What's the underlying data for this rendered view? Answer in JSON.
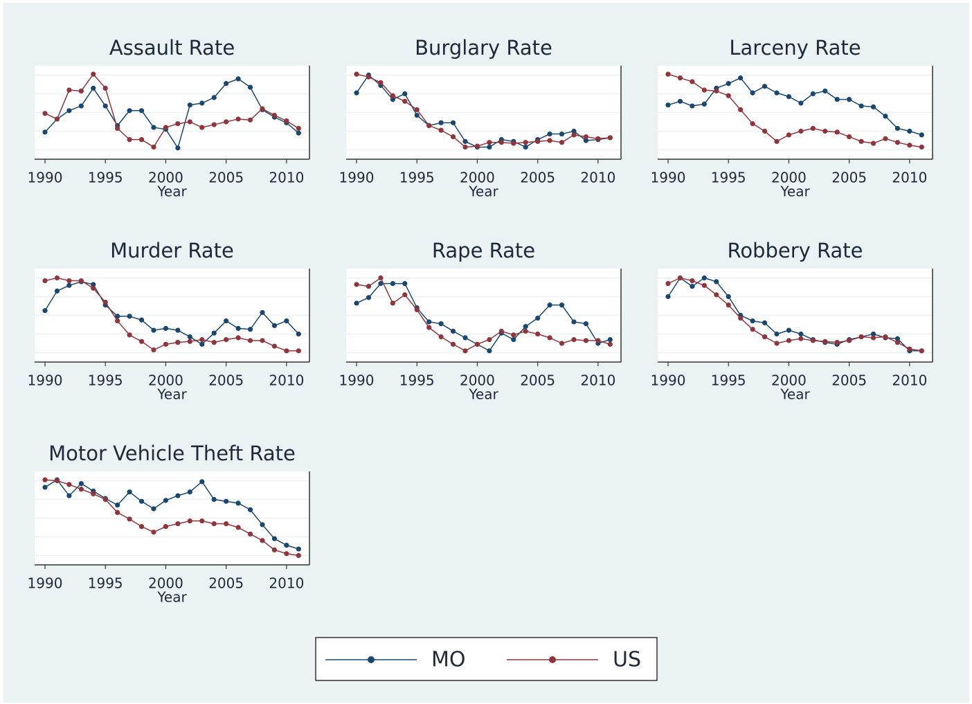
{
  "chart_data": [
    {
      "type": "line",
      "title": "Assault Rate",
      "xlabel": "Year",
      "x": [
        1990,
        1991,
        1992,
        1993,
        1994,
        1995,
        1996,
        1997,
        1998,
        1999,
        2000,
        2001,
        2002,
        2003,
        2004,
        2005,
        2006,
        2007,
        2008,
        2009,
        2010,
        2011
      ],
      "xlim": [
        1989.14,
        2011.9
      ],
      "xticks": [
        1990,
        1995,
        2000,
        2005,
        2010
      ],
      "ylim": [
        0,
        100
      ],
      "yticks": [
        10,
        30,
        50,
        70,
        90
      ],
      "grid": true,
      "series": [
        {
          "values": [
            29,
            43,
            52,
            57,
            76,
            57,
            36,
            52,
            52,
            34,
            32,
            12,
            58,
            60,
            66,
            81,
            86,
            77,
            53,
            45,
            39,
            28
          ]
        },
        {
          "values": [
            49,
            43,
            74,
            73,
            91,
            76,
            33,
            21,
            21,
            13,
            34,
            38,
            40,
            34,
            37,
            40,
            43,
            42,
            54,
            47,
            41,
            33
          ]
        }
      ]
    },
    {
      "type": "line",
      "title": "Burglary Rate",
      "xlabel": "Year",
      "x": [
        1990,
        1991,
        1992,
        1993,
        1994,
        1995,
        1996,
        1997,
        1998,
        1999,
        2000,
        2001,
        2002,
        2003,
        2004,
        2005,
        2006,
        2007,
        2008,
        2009,
        2010,
        2011
      ],
      "xlim": [
        1989.14,
        2011.9
      ],
      "xticks": [
        1990,
        1995,
        2000,
        2005,
        2010
      ],
      "ylim": [
        0,
        100
      ],
      "yticks": [
        10,
        30,
        50,
        70,
        90
      ],
      "grid": true,
      "series": [
        {
          "values": [
            71,
            90,
            79,
            64,
            70,
            47,
            36,
            39,
            39,
            19,
            13,
            13,
            21,
            19,
            13,
            21,
            27,
            27,
            30,
            20,
            21,
            23
          ]
        },
        {
          "values": [
            91,
            88,
            82,
            68,
            62,
            53,
            36,
            31,
            24,
            13,
            14,
            18,
            18,
            17,
            18,
            19,
            20,
            18,
            26,
            24,
            22,
            23
          ]
        }
      ]
    },
    {
      "type": "line",
      "title": "Larceny Rate",
      "xlabel": "Year",
      "x": [
        1990,
        1991,
        1992,
        1993,
        1994,
        1995,
        1996,
        1997,
        1998,
        1999,
        2000,
        2001,
        2002,
        2003,
        2004,
        2005,
        2006,
        2007,
        2008,
        2009,
        2010,
        2011
      ],
      "xlim": [
        1989.14,
        2011.9
      ],
      "xticks": [
        1990,
        1995,
        2000,
        2005,
        2010
      ],
      "ylim": [
        0,
        100
      ],
      "yticks": [
        10,
        30,
        50,
        70,
        90
      ],
      "grid": true,
      "series": [
        {
          "values": [
            58,
            62,
            57,
            59,
            76,
            81,
            87,
            71,
            78,
            71,
            67,
            60,
            70,
            73,
            64,
            64,
            57,
            56,
            46,
            33,
            30,
            26
          ]
        },
        {
          "values": [
            91,
            87,
            83,
            74,
            73,
            68,
            53,
            38,
            30,
            19,
            26,
            30,
            33,
            30,
            29,
            24,
            19,
            17,
            22,
            18,
            15,
            13
          ]
        }
      ]
    },
    {
      "type": "line",
      "title": "Murder Rate",
      "xlabel": "Year",
      "x": [
        1990,
        1991,
        1992,
        1993,
        1994,
        1995,
        1996,
        1997,
        1998,
        1999,
        2000,
        2001,
        2002,
        2003,
        2004,
        2005,
        2006,
        2007,
        2008,
        2009,
        2010,
        2011
      ],
      "xlim": [
        1989.14,
        2011.9
      ],
      "xticks": [
        1990,
        1995,
        2000,
        2005,
        2010
      ],
      "ylim": [
        0,
        100
      ],
      "yticks": [
        10,
        30,
        50,
        70,
        90
      ],
      "grid": true,
      "series": [
        {
          "values": [
            55,
            76,
            82,
            86,
            83,
            61,
            49,
            49,
            45,
            34,
            36,
            34,
            27,
            19,
            31,
            44,
            36,
            35,
            53,
            39,
            44,
            30
          ]
        },
        {
          "values": [
            87,
            90,
            87,
            87,
            79,
            64,
            44,
            29,
            22,
            13,
            19,
            21,
            22,
            24,
            21,
            24,
            26,
            23,
            23,
            17,
            12,
            12
          ]
        }
      ]
    },
    {
      "type": "line",
      "title": "Rape Rate",
      "xlabel": "Year",
      "x": [
        1990,
        1991,
        1992,
        1993,
        1994,
        1995,
        1996,
        1997,
        1998,
        1999,
        2000,
        2001,
        2002,
        2003,
        2004,
        2005,
        2006,
        2007,
        2008,
        2009,
        2010,
        2011
      ],
      "xlim": [
        1989.14,
        2011.9
      ],
      "xticks": [
        1990,
        1995,
        2000,
        2005,
        2010
      ],
      "ylim": [
        0,
        100
      ],
      "yticks": [
        10,
        30,
        50,
        70,
        90
      ],
      "grid": true,
      "series": [
        {
          "values": [
            63,
            69,
            84,
            84,
            84,
            58,
            43,
            41,
            33,
            26,
            19,
            12,
            31,
            24,
            38,
            47,
            61,
            61,
            43,
            41,
            20,
            24
          ]
        },
        {
          "values": [
            83,
            81,
            90,
            63,
            72,
            56,
            37,
            27,
            19,
            12,
            19,
            24,
            33,
            29,
            33,
            30,
            26,
            20,
            24,
            23,
            23,
            19
          ]
        }
      ]
    },
    {
      "type": "line",
      "title": "Robbery Rate",
      "xlabel": "Year",
      "x": [
        1990,
        1991,
        1992,
        1993,
        1994,
        1995,
        1996,
        1997,
        1998,
        1999,
        2000,
        2001,
        2002,
        2003,
        2004,
        2005,
        2006,
        2007,
        2008,
        2009,
        2010,
        2011
      ],
      "xlim": [
        1989.14,
        2011.9
      ],
      "xticks": [
        1990,
        1995,
        2000,
        2005,
        2010
      ],
      "ylim": [
        0,
        100
      ],
      "yticks": [
        10,
        30,
        50,
        70,
        90
      ],
      "grid": true,
      "series": [
        {
          "values": [
            70,
            90,
            81,
            90,
            86,
            70,
            50,
            44,
            42,
            30,
            34,
            30,
            24,
            21,
            19,
            24,
            27,
            30,
            26,
            25,
            12,
            12
          ]
        },
        {
          "values": [
            84,
            90,
            87,
            82,
            72,
            61,
            47,
            35,
            27,
            20,
            23,
            25,
            23,
            22,
            21,
            23,
            27,
            26,
            27,
            21,
            14,
            12
          ]
        }
      ]
    },
    {
      "type": "line",
      "title": "Motor Vehicle Theft Rate",
      "xlabel": "Year",
      "x": [
        1990,
        1991,
        1992,
        1993,
        1994,
        1995,
        1996,
        1997,
        1998,
        1999,
        2000,
        2001,
        2002,
        2003,
        2004,
        2005,
        2006,
        2007,
        2008,
        2009,
        2010,
        2011
      ],
      "xlim": [
        1989.14,
        2011.9
      ],
      "xticks": [
        1990,
        1995,
        2000,
        2005,
        2010
      ],
      "ylim": [
        0,
        100
      ],
      "yticks": [
        10,
        30,
        50,
        70,
        90
      ],
      "grid": true,
      "series": [
        {
          "values": [
            83,
            91,
            74,
            87,
            79,
            71,
            64,
            78,
            68,
            60,
            69,
            74,
            78,
            89,
            70,
            68,
            66,
            59,
            43,
            28,
            21,
            17
          ]
        },
        {
          "values": [
            91,
            90,
            86,
            81,
            76,
            70,
            56,
            49,
            41,
            35,
            41,
            44,
            47,
            47,
            44,
            44,
            40,
            33,
            26,
            16,
            12,
            10
          ]
        }
      ]
    }
  ],
  "legend": [
    {
      "name": "MO",
      "color": "#1a476f"
    },
    {
      "name": "US",
      "color": "#90353b"
    }
  ]
}
